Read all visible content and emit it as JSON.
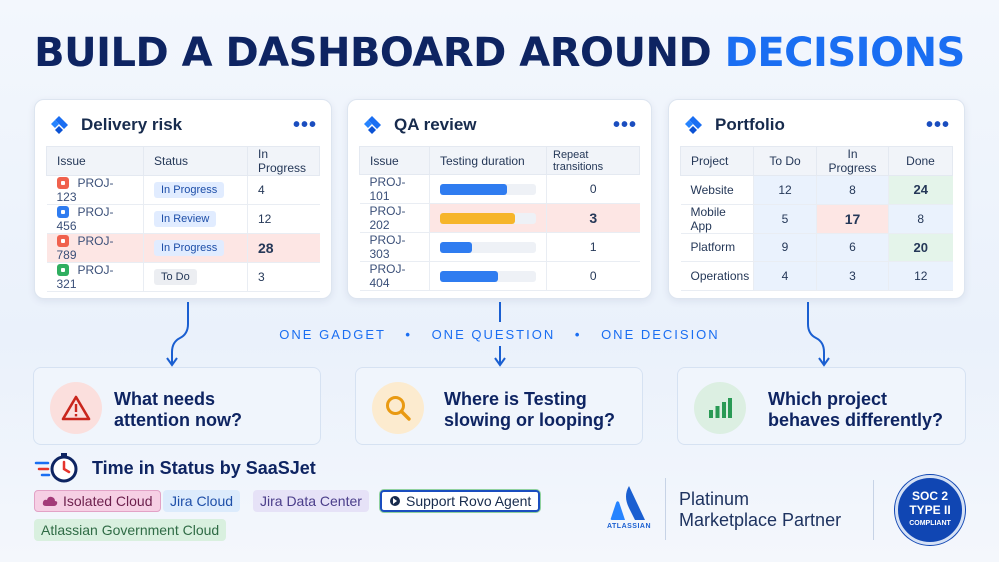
{
  "headline": {
    "main": "BUILD A DASHBOARD AROUND",
    "accent": "DECISIONS"
  },
  "menu_glyph": "•••",
  "colors": {
    "accent": "#1a6ef2",
    "navy": "#0e2462",
    "hot": "#fde6e4",
    "good": "#e4f4ea"
  },
  "delivery": {
    "title": "Delivery risk",
    "columns": [
      "Issue",
      "Status",
      "In Progress"
    ],
    "rows": [
      {
        "issue": "PROJ-123",
        "status": "In Progress",
        "value": "4",
        "icon_color": "#f0614d"
      },
      {
        "issue": "PROJ-456",
        "status": "In Review",
        "value": "12",
        "icon_color": "#2f7cf0"
      },
      {
        "issue": "PROJ-789",
        "status": "In Progress",
        "value": "28",
        "icon_color": "#f0614d"
      },
      {
        "issue": "PROJ-321",
        "status": "To Do",
        "value": "3",
        "icon_color": "#2fae60"
      }
    ]
  },
  "qa": {
    "title": "QA review",
    "columns": [
      "Issue",
      "Testing duration",
      "Repeat transitions"
    ],
    "rows": [
      {
        "issue": "PROJ-101",
        "duration_fraction": 0.7,
        "bar_color": "#2f7cf0",
        "repeats": "0"
      },
      {
        "issue": "PROJ-202",
        "duration_fraction": 0.78,
        "bar_color": "#f6b52a",
        "repeats": "3"
      },
      {
        "issue": "PROJ-303",
        "duration_fraction": 0.33,
        "bar_color": "#2f7cf0",
        "repeats": "1"
      },
      {
        "issue": "PROJ-404",
        "duration_fraction": 0.6,
        "bar_color": "#2f7cf0",
        "repeats": "0"
      }
    ]
  },
  "portfolio": {
    "title": "Portfolio",
    "columns": [
      "Project",
      "To Do",
      "In Progress",
      "Done"
    ],
    "rows": [
      {
        "project": "Website",
        "todo": "12",
        "inprogress": "8",
        "done": "24"
      },
      {
        "project": "Mobile App",
        "todo": "5",
        "inprogress": "17",
        "done": "8"
      },
      {
        "project": "Platform",
        "todo": "9",
        "inprogress": "6",
        "done": "20"
      },
      {
        "project": "Operations",
        "todo": "4",
        "inprogress": "3",
        "done": "12"
      }
    ]
  },
  "tagline": {
    "a": "ONE GADGET",
    "b": "ONE QUESTION",
    "c": "ONE DECISION",
    "sep": "•"
  },
  "questions": [
    {
      "line1": "What needs",
      "line2": "attention now?",
      "icon": "warning-icon"
    },
    {
      "line1": "Where is Testing",
      "line2": "slowing or looping?",
      "icon": "search-icon"
    },
    {
      "line1": "Which project",
      "line2": "behaves differently?",
      "icon": "bar-chart-icon"
    }
  ],
  "brand": {
    "title": "Time in Status by SaaSJet",
    "icon": "stopwatch-icon"
  },
  "chips": [
    "Isolated Cloud",
    "Jira Cloud",
    "Jira Data Center",
    "Support Rovo Agent",
    "Atlassian Government Cloud"
  ],
  "partner": {
    "line1": "Platinum",
    "line2": "Marketplace Partner",
    "logo_word": "ATLASSIAN"
  },
  "soc": {
    "line1": "SOC 2",
    "line2": "TYPE II",
    "line3": "COMPLIANT"
  }
}
